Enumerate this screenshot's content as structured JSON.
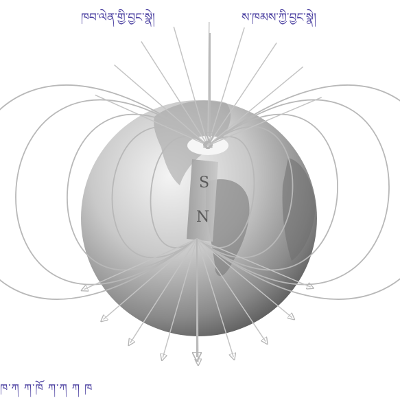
{
  "labels": {
    "top_left": "ཁབ་ལེན་གྱི་བྱང་སྣེ།",
    "top_right": "ས་ཁམས་ཀྱི་བྱང་སྣེ།",
    "bottom_partial": "ཁ་ཀ                    ཀ་ཁོ   ཀ་ཀ          ཀ         ཁ"
  },
  "magnet": {
    "south_pole": "S",
    "north_pole": "N"
  },
  "colors": {
    "label_text": "#4a3fa0",
    "field_lines": "#b8b8b8",
    "globe_light": "#f2f2f2",
    "globe_dark": "#5c5c5c"
  }
}
